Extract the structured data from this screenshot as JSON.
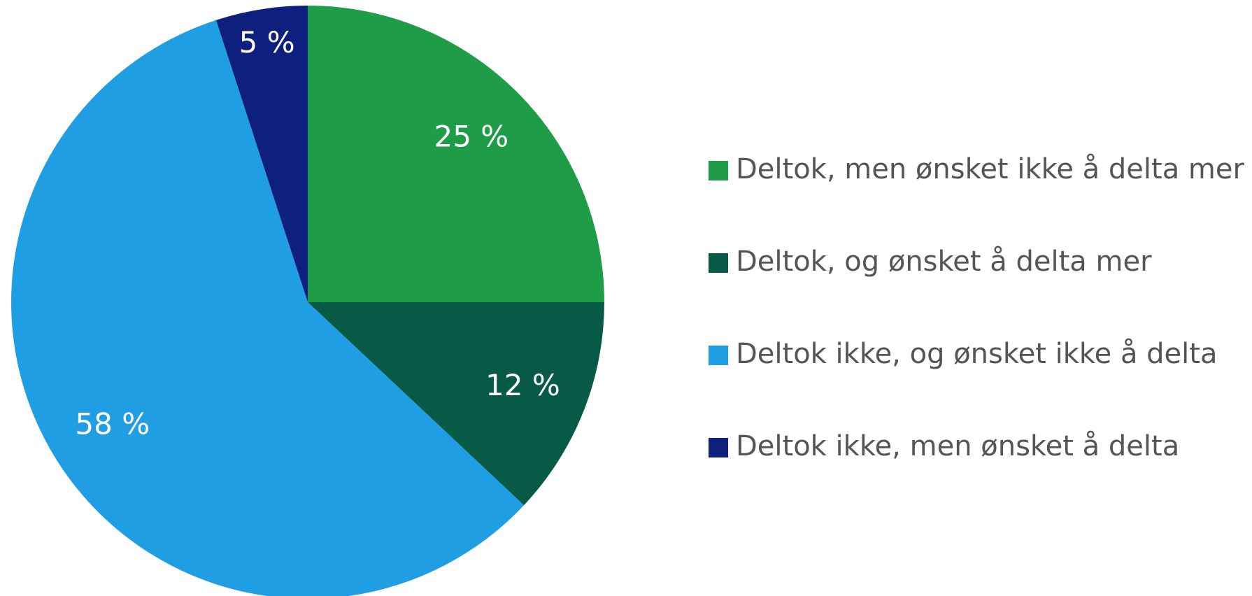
{
  "chart_data": {
    "type": "pie",
    "categories": [
      "Deltok, men ønsket ikke å delta mer",
      "Deltok, og ønsket å delta mer",
      "Deltok ikke, og ønsket ikke å delta",
      "Deltok ikke, men ønsket å delta"
    ],
    "values": [
      25,
      12,
      58,
      5
    ],
    "value_labels": [
      "25 %",
      "12 %",
      "58 %",
      "5 %"
    ],
    "colors": [
      "#1e9c48",
      "#065a46",
      "#1f9ee3",
      "#0f1f7e"
    ],
    "legend": "right"
  }
}
